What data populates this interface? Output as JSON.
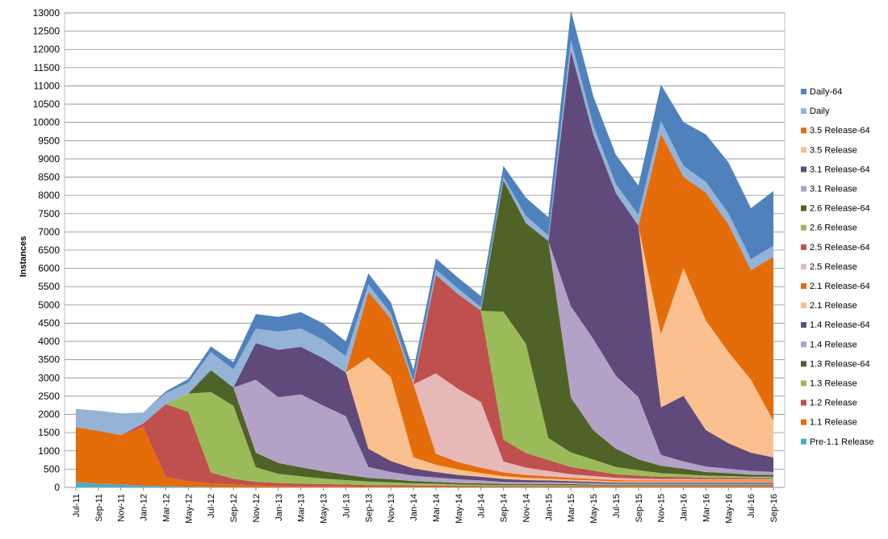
{
  "chart_data": {
    "type": "area",
    "title": "",
    "xlabel": "",
    "ylabel": "Instances",
    "ylim": [
      0,
      13000
    ],
    "yticks": [
      0,
      500,
      1000,
      1500,
      2000,
      2500,
      3000,
      3500,
      4000,
      4500,
      5000,
      5500,
      6000,
      6500,
      7000,
      7500,
      8000,
      8500,
      9000,
      9500,
      10000,
      10500,
      11000,
      11500,
      12000,
      12500,
      13000
    ],
    "grid": true,
    "legend_position": "right",
    "categories": [
      "Jul-11",
      "Sep-11",
      "Nov-11",
      "Jan-12",
      "Mar-12",
      "May-12",
      "Jul-12",
      "Sep-12",
      "Nov-12",
      "Jan-13",
      "Mar-13",
      "May-13",
      "Jul-13",
      "Sep-13",
      "Nov-13",
      "Jan-14",
      "Mar-14",
      "May-14",
      "Jul-14",
      "Sep-14",
      "Nov-14",
      "Jan-15",
      "Mar-15",
      "May-15",
      "Jul-15",
      "Sep-15",
      "Nov-15",
      "Jan-16",
      "Mar-16",
      "May-16",
      "Jul-16",
      "Sep-16"
    ],
    "colors": {
      "Pre-1.1 Release": "#4bacc6",
      "1.1 Release": "#e46c0a",
      "1.2 Release": "#c0504d",
      "1.3 Release": "#9bbb59",
      "1.3 Release-64": "#4f6228",
      "1.4 Release": "#b3a2c7",
      "1.4 Release-64": "#604a7b",
      "2.1 Release": "#fac090",
      "2.1 Release-64": "#e46c0a",
      "2.5 Release": "#e6b9b8",
      "2.5 Release-64": "#c0504d",
      "2.6 Release": "#9bbb59",
      "2.6 Release-64": "#4f6228",
      "3.1 Release": "#b3a2c7",
      "3.1 Release-64": "#604a7b",
      "3.5 Release": "#fac090",
      "3.5 Release-64": "#e46c0a",
      "Daily": "#95b3d7",
      "Daily-64": "#4f81bd"
    },
    "legend": [
      "Daily-64",
      "Daily",
      "3.5 Release-64",
      "3.5 Release",
      "3.1 Release-64",
      "3.1 Release",
      "2.6 Release-64",
      "2.6 Release",
      "2.5 Release-64",
      "2.5 Release",
      "2.1 Release-64",
      "2.1 Release",
      "1.4 Release-64",
      "1.4 Release",
      "1.3 Release-64",
      "1.3 Release",
      "1.2 Release",
      "1.1 Release",
      "Pre-1.1 Release"
    ],
    "series": [
      {
        "name": "Pre-1.1 Release",
        "values": [
          150,
          100,
          80,
          50,
          30,
          20,
          10,
          5,
          0,
          0,
          0,
          0,
          0,
          0,
          0,
          0,
          0,
          0,
          0,
          0,
          0,
          0,
          0,
          0,
          0,
          0,
          0,
          0,
          0,
          0,
          0,
          0
        ]
      },
      {
        "name": "1.1 Release",
        "values": [
          1500,
          1450,
          1350,
          1600,
          250,
          150,
          100,
          80,
          50,
          40,
          30,
          30,
          30,
          20,
          20,
          20,
          20,
          10,
          10,
          10,
          10,
          10,
          10,
          10,
          10,
          10,
          10,
          10,
          10,
          10,
          10,
          10
        ]
      },
      {
        "name": "1.2 Release",
        "values": [
          0,
          0,
          0,
          100,
          2000,
          1900,
          300,
          150,
          100,
          80,
          70,
          60,
          50,
          40,
          40,
          30,
          30,
          30,
          20,
          20,
          20,
          20,
          20,
          20,
          20,
          20,
          20,
          20,
          20,
          20,
          20,
          20
        ]
      },
      {
        "name": "1.3 Release",
        "values": [
          0,
          0,
          0,
          0,
          0,
          500,
          2200,
          2000,
          400,
          250,
          200,
          150,
          120,
          100,
          80,
          60,
          50,
          40,
          40,
          30,
          30,
          30,
          30,
          20,
          20,
          20,
          20,
          20,
          20,
          20,
          20,
          20
        ]
      },
      {
        "name": "1.3 Release-64",
        "values": [
          0,
          0,
          0,
          0,
          0,
          0,
          600,
          500,
          400,
          300,
          250,
          200,
          150,
          100,
          80,
          60,
          50,
          40,
          40,
          30,
          30,
          30,
          30,
          20,
          20,
          20,
          20,
          20,
          20,
          20,
          20,
          20
        ]
      },
      {
        "name": "1.4 Release",
        "values": [
          0,
          0,
          0,
          0,
          0,
          0,
          0,
          0,
          2000,
          1800,
          2000,
          1800,
          1600,
          300,
          200,
          150,
          120,
          100,
          80,
          60,
          50,
          50,
          40,
          40,
          30,
          30,
          30,
          30,
          30,
          30,
          30,
          30
        ]
      },
      {
        "name": "1.4 Release-64",
        "values": [
          0,
          0,
          0,
          0,
          0,
          0,
          0,
          0,
          1000,
          1300,
          1300,
          1300,
          1200,
          500,
          300,
          200,
          150,
          120,
          100,
          80,
          60,
          50,
          40,
          40,
          30,
          30,
          30,
          30,
          30,
          30,
          30,
          30
        ]
      },
      {
        "name": "2.1 Release",
        "values": [
          0,
          0,
          0,
          0,
          0,
          0,
          0,
          0,
          0,
          0,
          0,
          0,
          0,
          2500,
          2300,
          300,
          200,
          150,
          100,
          80,
          60,
          50,
          40,
          40,
          30,
          30,
          30,
          30,
          30,
          30,
          30,
          30
        ]
      },
      {
        "name": "2.1 Release-64",
        "values": [
          0,
          0,
          0,
          0,
          0,
          0,
          0,
          0,
          0,
          0,
          0,
          0,
          0,
          1800,
          1600,
          2000,
          300,
          200,
          150,
          100,
          80,
          60,
          50,
          40,
          40,
          30,
          30,
          30,
          30,
          30,
          30,
          30
        ]
      },
      {
        "name": "2.5 Release",
        "values": [
          0,
          0,
          0,
          0,
          0,
          0,
          0,
          0,
          0,
          0,
          0,
          0,
          0,
          0,
          0,
          0,
          2200,
          2000,
          1800,
          300,
          200,
          150,
          100,
          80,
          60,
          50,
          40,
          40,
          30,
          30,
          30,
          30
        ]
      },
      {
        "name": "2.5 Release-64",
        "values": [
          0,
          0,
          0,
          0,
          0,
          0,
          0,
          0,
          0,
          0,
          0,
          0,
          0,
          0,
          0,
          0,
          2700,
          2600,
          2500,
          600,
          400,
          300,
          200,
          150,
          100,
          80,
          60,
          50,
          40,
          40,
          30,
          30
        ]
      },
      {
        "name": "2.6 Release",
        "values": [
          0,
          0,
          0,
          0,
          0,
          0,
          0,
          0,
          0,
          0,
          0,
          0,
          0,
          0,
          0,
          0,
          0,
          0,
          0,
          3500,
          3000,
          600,
          400,
          300,
          200,
          150,
          100,
          80,
          60,
          50,
          40,
          40
        ]
      },
      {
        "name": "2.6 Release-64",
        "values": [
          0,
          0,
          0,
          0,
          0,
          0,
          0,
          0,
          0,
          0,
          0,
          0,
          0,
          0,
          0,
          0,
          0,
          0,
          0,
          3600,
          3300,
          5400,
          1500,
          800,
          500,
          300,
          200,
          150,
          100,
          80,
          60,
          50
        ]
      },
      {
        "name": "3.1 Release",
        "values": [
          0,
          0,
          0,
          0,
          0,
          0,
          0,
          0,
          0,
          0,
          0,
          0,
          0,
          0,
          0,
          0,
          0,
          0,
          0,
          0,
          0,
          0,
          2500,
          2500,
          2000,
          1700,
          300,
          200,
          150,
          120,
          100,
          80
        ]
      },
      {
        "name": "3.1 Release-64",
        "values": [
          0,
          0,
          0,
          0,
          0,
          0,
          0,
          0,
          0,
          0,
          0,
          0,
          0,
          0,
          0,
          0,
          0,
          0,
          0,
          0,
          0,
          0,
          7000,
          5600,
          5000,
          4700,
          1300,
          1800,
          1000,
          700,
          500,
          400
        ]
      },
      {
        "name": "3.5 Release",
        "values": [
          0,
          0,
          0,
          0,
          0,
          0,
          0,
          0,
          0,
          0,
          0,
          0,
          0,
          0,
          0,
          0,
          0,
          0,
          0,
          0,
          0,
          0,
          0,
          0,
          0,
          0,
          2000,
          3500,
          3000,
          2500,
          2000,
          1000
        ]
      },
      {
        "name": "3.5 Release-64",
        "values": [
          0,
          0,
          0,
          0,
          0,
          0,
          0,
          0,
          0,
          0,
          0,
          0,
          0,
          0,
          0,
          0,
          0,
          0,
          0,
          0,
          0,
          0,
          0,
          0,
          0,
          0,
          5500,
          2500,
          3500,
          3500,
          3000,
          4500
        ]
      },
      {
        "name": "Daily",
        "values": [
          500,
          550,
          600,
          300,
          300,
          300,
          500,
          500,
          400,
          500,
          500,
          500,
          450,
          200,
          150,
          100,
          150,
          150,
          100,
          100,
          200,
          150,
          300,
          250,
          250,
          300,
          350,
          300,
          300,
          300,
          300,
          300
        ]
      },
      {
        "name": "Daily-64",
        "values": [
          0,
          0,
          0,
          0,
          50,
          100,
          150,
          200,
          400,
          400,
          450,
          450,
          400,
          300,
          300,
          300,
          300,
          300,
          300,
          300,
          500,
          500,
          800,
          800,
          800,
          800,
          1000,
          1200,
          1300,
          1400,
          1400,
          1500
        ]
      }
    ]
  }
}
